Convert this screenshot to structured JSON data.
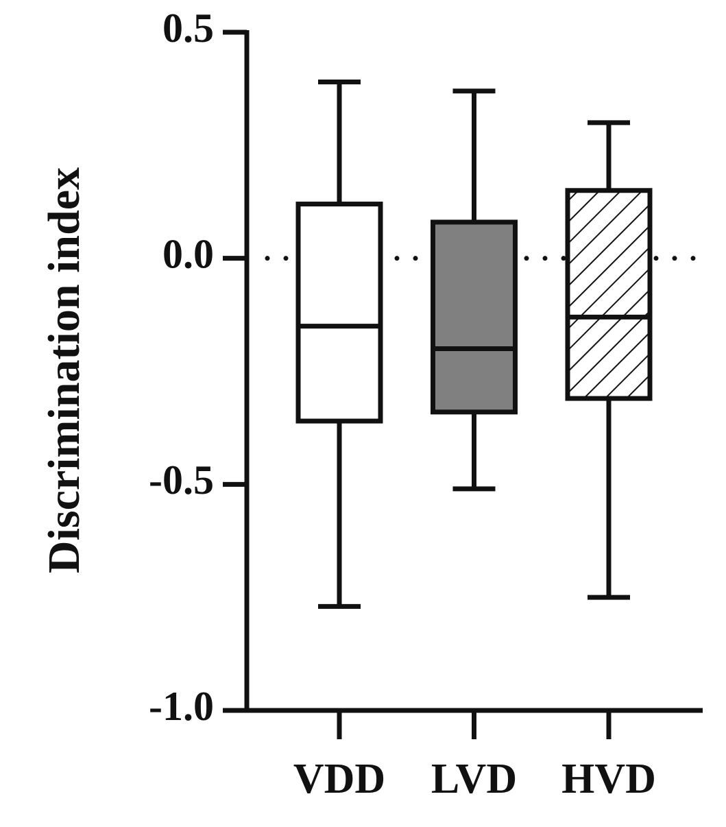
{
  "chart_data": {
    "type": "box",
    "y_label": "Discrimination index",
    "categories": [
      "VDD",
      "LVD",
      "HVD"
    ],
    "boxes": [
      {
        "whislo": -0.77,
        "q1": -0.36,
        "med": -0.15,
        "q3": 0.12,
        "whishi": 0.39
      },
      {
        "whislo": -0.51,
        "q1": -0.34,
        "med": -0.2,
        "q3": 0.08,
        "whishi": 0.37
      },
      {
        "whislo": -0.75,
        "q1": -0.31,
        "med": -0.13,
        "q3": 0.15,
        "whishi": 0.3
      }
    ],
    "fills": [
      "#ffffff",
      "#808080",
      "#ffffff"
    ],
    "hatch": [
      false,
      false,
      true
    ],
    "reference_line": 0,
    "ylim": [
      -1.0,
      0.5
    ],
    "yticks": [
      {
        "value": -1.0,
        "label": "-1.0"
      },
      -0.5,
      {
        "value": 0,
        "label": "0.0"
      },
      0.5
    ]
  }
}
